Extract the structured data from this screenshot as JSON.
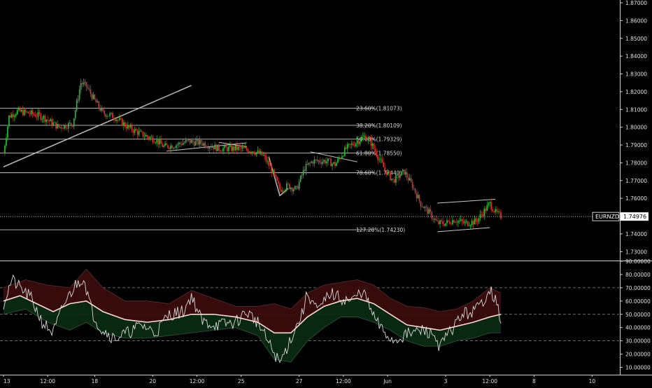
{
  "chart_data": {
    "type": "candlestick",
    "symbol": "EURNZD",
    "last_price_label": "1.74976",
    "last_price": 1.74976,
    "colors": {
      "background": "#000000",
      "up": "#26c43a",
      "down": "#e0342c",
      "fib_line": "#c8c8c8",
      "trendline": "#b4b4b4",
      "rsi_line": "#d9d9d9",
      "rsi_ma": "#ffd9d2",
      "band_upper_fill": "#3a0c0c",
      "band_lower_fill": "#0a2a12",
      "axis_text": "#e0e0e0",
      "separator": "#cfcfcf"
    },
    "price_axis": {
      "ylim": [
        1.725,
        1.87
      ],
      "ticks": [
        "1.73000",
        "1.74000",
        "1.75000",
        "1.76000",
        "1.77000",
        "1.78000",
        "1.79000",
        "1.80000",
        "1.81000",
        "1.82000",
        "1.83000",
        "1.84000",
        "1.85000",
        "1.86000",
        "1.87000"
      ],
      "values": [
        1.73,
        1.74,
        1.75,
        1.76,
        1.77,
        1.78,
        1.79,
        1.8,
        1.81,
        1.82,
        1.83,
        1.84,
        1.85,
        1.86,
        1.87
      ]
    },
    "time_axis": {
      "labels": [
        "13",
        "12:00",
        "18",
        "20",
        "12:00",
        "25",
        "27",
        "12:00",
        "Jun",
        "3",
        "12:00",
        "8",
        "10"
      ],
      "positions": [
        0,
        16,
        33,
        54,
        70,
        86,
        107,
        123,
        139,
        160,
        176,
        192,
        213
      ]
    },
    "fib_levels": [
      {
        "label": "23.60%(1.81073)",
        "value": 1.81073
      },
      {
        "label": "38.20%(1.80109)",
        "value": 1.80109
      },
      {
        "label": "50.00%(1.79329)",
        "value": 1.79329
      },
      {
        "label": "61.80%(1.78550)",
        "value": 1.7855
      },
      {
        "label": "78.60%(1.77440)",
        "value": 1.7744
      },
      {
        "label": "127.20%(1.74230)",
        "value": 1.7423
      }
    ],
    "candle_path": [
      [
        0,
        1.7855
      ],
      [
        2,
        1.806
      ],
      [
        5,
        1.809
      ],
      [
        9,
        1.808
      ],
      [
        14,
        1.806
      ],
      [
        20,
        1.8
      ],
      [
        25,
        1.802
      ],
      [
        28,
        1.825
      ],
      [
        30,
        1.823
      ],
      [
        33,
        1.815
      ],
      [
        36,
        1.808
      ],
      [
        40,
        1.806
      ],
      [
        45,
        1.8
      ],
      [
        50,
        1.796
      ],
      [
        55,
        1.793
      ],
      [
        58,
        1.789
      ],
      [
        62,
        1.79
      ],
      [
        67,
        1.792
      ],
      [
        72,
        1.791
      ],
      [
        78,
        1.788
      ],
      [
        85,
        1.788
      ],
      [
        90,
        1.787
      ],
      [
        94,
        1.784
      ],
      [
        97,
        1.776
      ],
      [
        100,
        1.765
      ],
      [
        103,
        1.767
      ],
      [
        106,
        1.765
      ],
      [
        109,
        1.777
      ],
      [
        112,
        1.781
      ],
      [
        117,
        1.781
      ],
      [
        120,
        1.779
      ],
      [
        124,
        1.788
      ],
      [
        128,
        1.792
      ],
      [
        131,
        1.795
      ],
      [
        133,
        1.791
      ],
      [
        135,
        1.785
      ],
      [
        138,
        1.776
      ],
      [
        141,
        1.77
      ],
      [
        145,
        1.775
      ],
      [
        148,
        1.767
      ],
      [
        151,
        1.757
      ],
      [
        154,
        1.752
      ],
      [
        157,
        1.746
      ],
      [
        160,
        1.746
      ],
      [
        163,
        1.748
      ],
      [
        167,
        1.746
      ],
      [
        171,
        1.747
      ],
      [
        174,
        1.753
      ],
      [
        176,
        1.757
      ],
      [
        178,
        1.752
      ],
      [
        180,
        1.74976
      ]
    ],
    "trendline_points": [
      [
        0,
        1.7777
      ],
      [
        68,
        1.8235
      ]
    ],
    "flag_lines": [
      [
        [
          59,
          1.7865
        ],
        [
          88,
          1.7912
        ]
      ],
      [
        [
          78,
          1.7915
        ],
        [
          88,
          1.789
        ]
      ],
      [
        [
          111,
          1.7862
        ],
        [
          128,
          1.7805
        ]
      ],
      [
        [
          157,
          1.7573
        ],
        [
          178,
          1.7595
        ]
      ],
      [
        [
          157,
          1.7412
        ],
        [
          176,
          1.7435
        ]
      ]
    ],
    "drop_arrow": [
      [
        96,
        1.7835
      ],
      [
        100,
        1.7615
      ],
      [
        103,
        1.7655
      ]
    ],
    "oscillator_axis": {
      "ylim": [
        5,
        90
      ],
      "ticks": [
        "10.00000",
        "20.00000",
        "30.00000",
        "40.00000",
        "50.00000",
        "60.00000",
        "70.00000",
        "80.00000",
        "90.00000"
      ],
      "values": [
        10,
        20,
        30,
        40,
        50,
        60,
        70,
        80,
        90
      ],
      "dashed_levels": [
        30,
        50,
        70
      ]
    },
    "rsi_path": [
      [
        0,
        58
      ],
      [
        3,
        76
      ],
      [
        6,
        70
      ],
      [
        10,
        62
      ],
      [
        14,
        44
      ],
      [
        18,
        36
      ],
      [
        22,
        58
      ],
      [
        26,
        72
      ],
      [
        29,
        78
      ],
      [
        32,
        52
      ],
      [
        35,
        40
      ],
      [
        40,
        32
      ],
      [
        45,
        36
      ],
      [
        50,
        42
      ],
      [
        55,
        36
      ],
      [
        60,
        50
      ],
      [
        65,
        52
      ],
      [
        68,
        64
      ],
      [
        72,
        44
      ],
      [
        78,
        42
      ],
      [
        84,
        44
      ],
      [
        88,
        52
      ],
      [
        92,
        44
      ],
      [
        96,
        28
      ],
      [
        100,
        13
      ],
      [
        104,
        32
      ],
      [
        108,
        50
      ],
      [
        110,
        66
      ],
      [
        114,
        52
      ],
      [
        118,
        66
      ],
      [
        122,
        62
      ],
      [
        126,
        60
      ],
      [
        130,
        68
      ],
      [
        134,
        48
      ],
      [
        137,
        38
      ],
      [
        141,
        30
      ],
      [
        145,
        34
      ],
      [
        148,
        36
      ],
      [
        152,
        38
      ],
      [
        156,
        34
      ],
      [
        158,
        25
      ],
      [
        160,
        32
      ],
      [
        162,
        38
      ],
      [
        166,
        50
      ],
      [
        170,
        52
      ],
      [
        173,
        58
      ],
      [
        176,
        70
      ],
      [
        178,
        60
      ],
      [
        180,
        46
      ]
    ],
    "rsi_ma_path": [
      [
        0,
        60
      ],
      [
        6,
        64
      ],
      [
        12,
        58
      ],
      [
        18,
        52
      ],
      [
        24,
        58
      ],
      [
        30,
        60
      ],
      [
        36,
        52
      ],
      [
        44,
        46
      ],
      [
        52,
        44
      ],
      [
        60,
        46
      ],
      [
        68,
        50
      ],
      [
        76,
        50
      ],
      [
        84,
        48
      ],
      [
        92,
        44
      ],
      [
        98,
        36
      ],
      [
        104,
        36
      ],
      [
        110,
        48
      ],
      [
        116,
        56
      ],
      [
        122,
        60
      ],
      [
        128,
        62
      ],
      [
        134,
        58
      ],
      [
        140,
        50
      ],
      [
        146,
        42
      ],
      [
        152,
        40
      ],
      [
        158,
        38
      ],
      [
        164,
        41
      ],
      [
        170,
        44
      ],
      [
        176,
        48
      ],
      [
        180,
        50
      ]
    ],
    "band_upper_path": [
      [
        0,
        70
      ],
      [
        8,
        76
      ],
      [
        16,
        72
      ],
      [
        24,
        70
      ],
      [
        30,
        84
      ],
      [
        36,
        70
      ],
      [
        44,
        60
      ],
      [
        52,
        60
      ],
      [
        60,
        58
      ],
      [
        68,
        68
      ],
      [
        76,
        62
      ],
      [
        84,
        56
      ],
      [
        92,
        56
      ],
      [
        98,
        58
      ],
      [
        104,
        54
      ],
      [
        110,
        66
      ],
      [
        116,
        72
      ],
      [
        122,
        74
      ],
      [
        128,
        76
      ],
      [
        134,
        72
      ],
      [
        140,
        62
      ],
      [
        146,
        56
      ],
      [
        152,
        55
      ],
      [
        158,
        52
      ],
      [
        164,
        54
      ],
      [
        170,
        60
      ],
      [
        176,
        70
      ],
      [
        180,
        66
      ]
    ],
    "band_lower_path": [
      [
        0,
        50
      ],
      [
        8,
        54
      ],
      [
        16,
        44
      ],
      [
        24,
        38
      ],
      [
        30,
        44
      ],
      [
        36,
        36
      ],
      [
        44,
        32
      ],
      [
        52,
        32
      ],
      [
        60,
        34
      ],
      [
        68,
        36
      ],
      [
        76,
        38
      ],
      [
        84,
        40
      ],
      [
        92,
        34
      ],
      [
        98,
        16
      ],
      [
        104,
        14
      ],
      [
        110,
        30
      ],
      [
        116,
        40
      ],
      [
        122,
        48
      ],
      [
        128,
        48
      ],
      [
        134,
        44
      ],
      [
        140,
        38
      ],
      [
        146,
        30
      ],
      [
        152,
        26
      ],
      [
        158,
        26
      ],
      [
        164,
        30
      ],
      [
        170,
        32
      ],
      [
        176,
        36
      ],
      [
        180,
        36
      ]
    ]
  }
}
